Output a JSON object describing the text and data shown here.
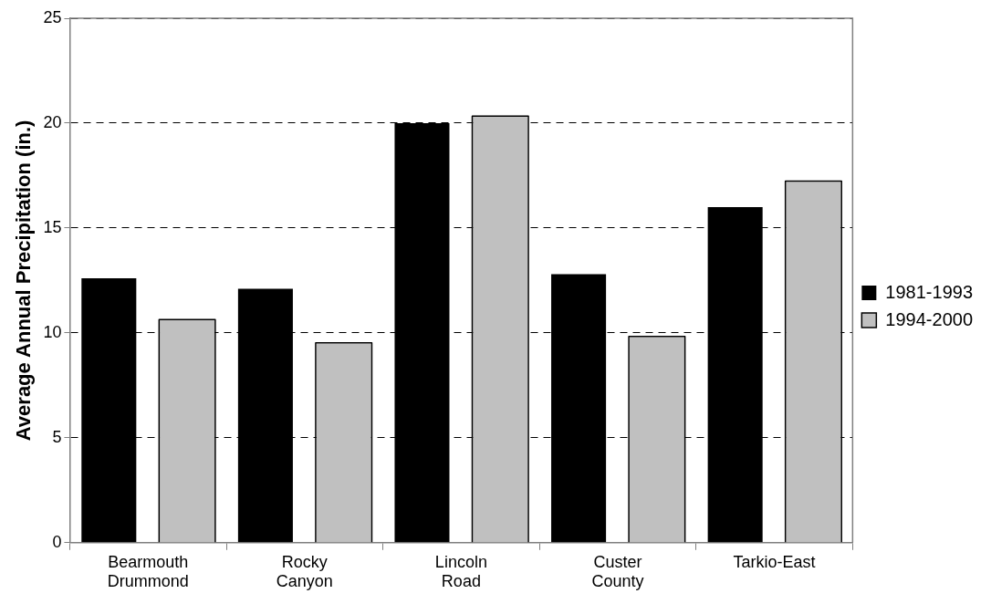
{
  "chart_data": {
    "type": "bar",
    "ylabel": "Average Annual Precipitation (in.)",
    "categories": [
      "Bearmouth Drummond",
      "Rocky Canyon",
      "Lincoln Road",
      "Custer County",
      "Tarkio-East"
    ],
    "series": [
      {
        "name": "1981-1993",
        "color": "#000000",
        "values": [
          12.6,
          12.1,
          20.0,
          12.8,
          16.0
        ]
      },
      {
        "name": "1994-2000",
        "color": "#c0c0c0",
        "values": [
          10.6,
          9.5,
          20.3,
          9.8,
          17.2
        ]
      }
    ],
    "ylim": [
      0,
      25
    ],
    "yticks": [
      0,
      5,
      10,
      15,
      20,
      25
    ],
    "grid": "y",
    "legend": "right"
  }
}
